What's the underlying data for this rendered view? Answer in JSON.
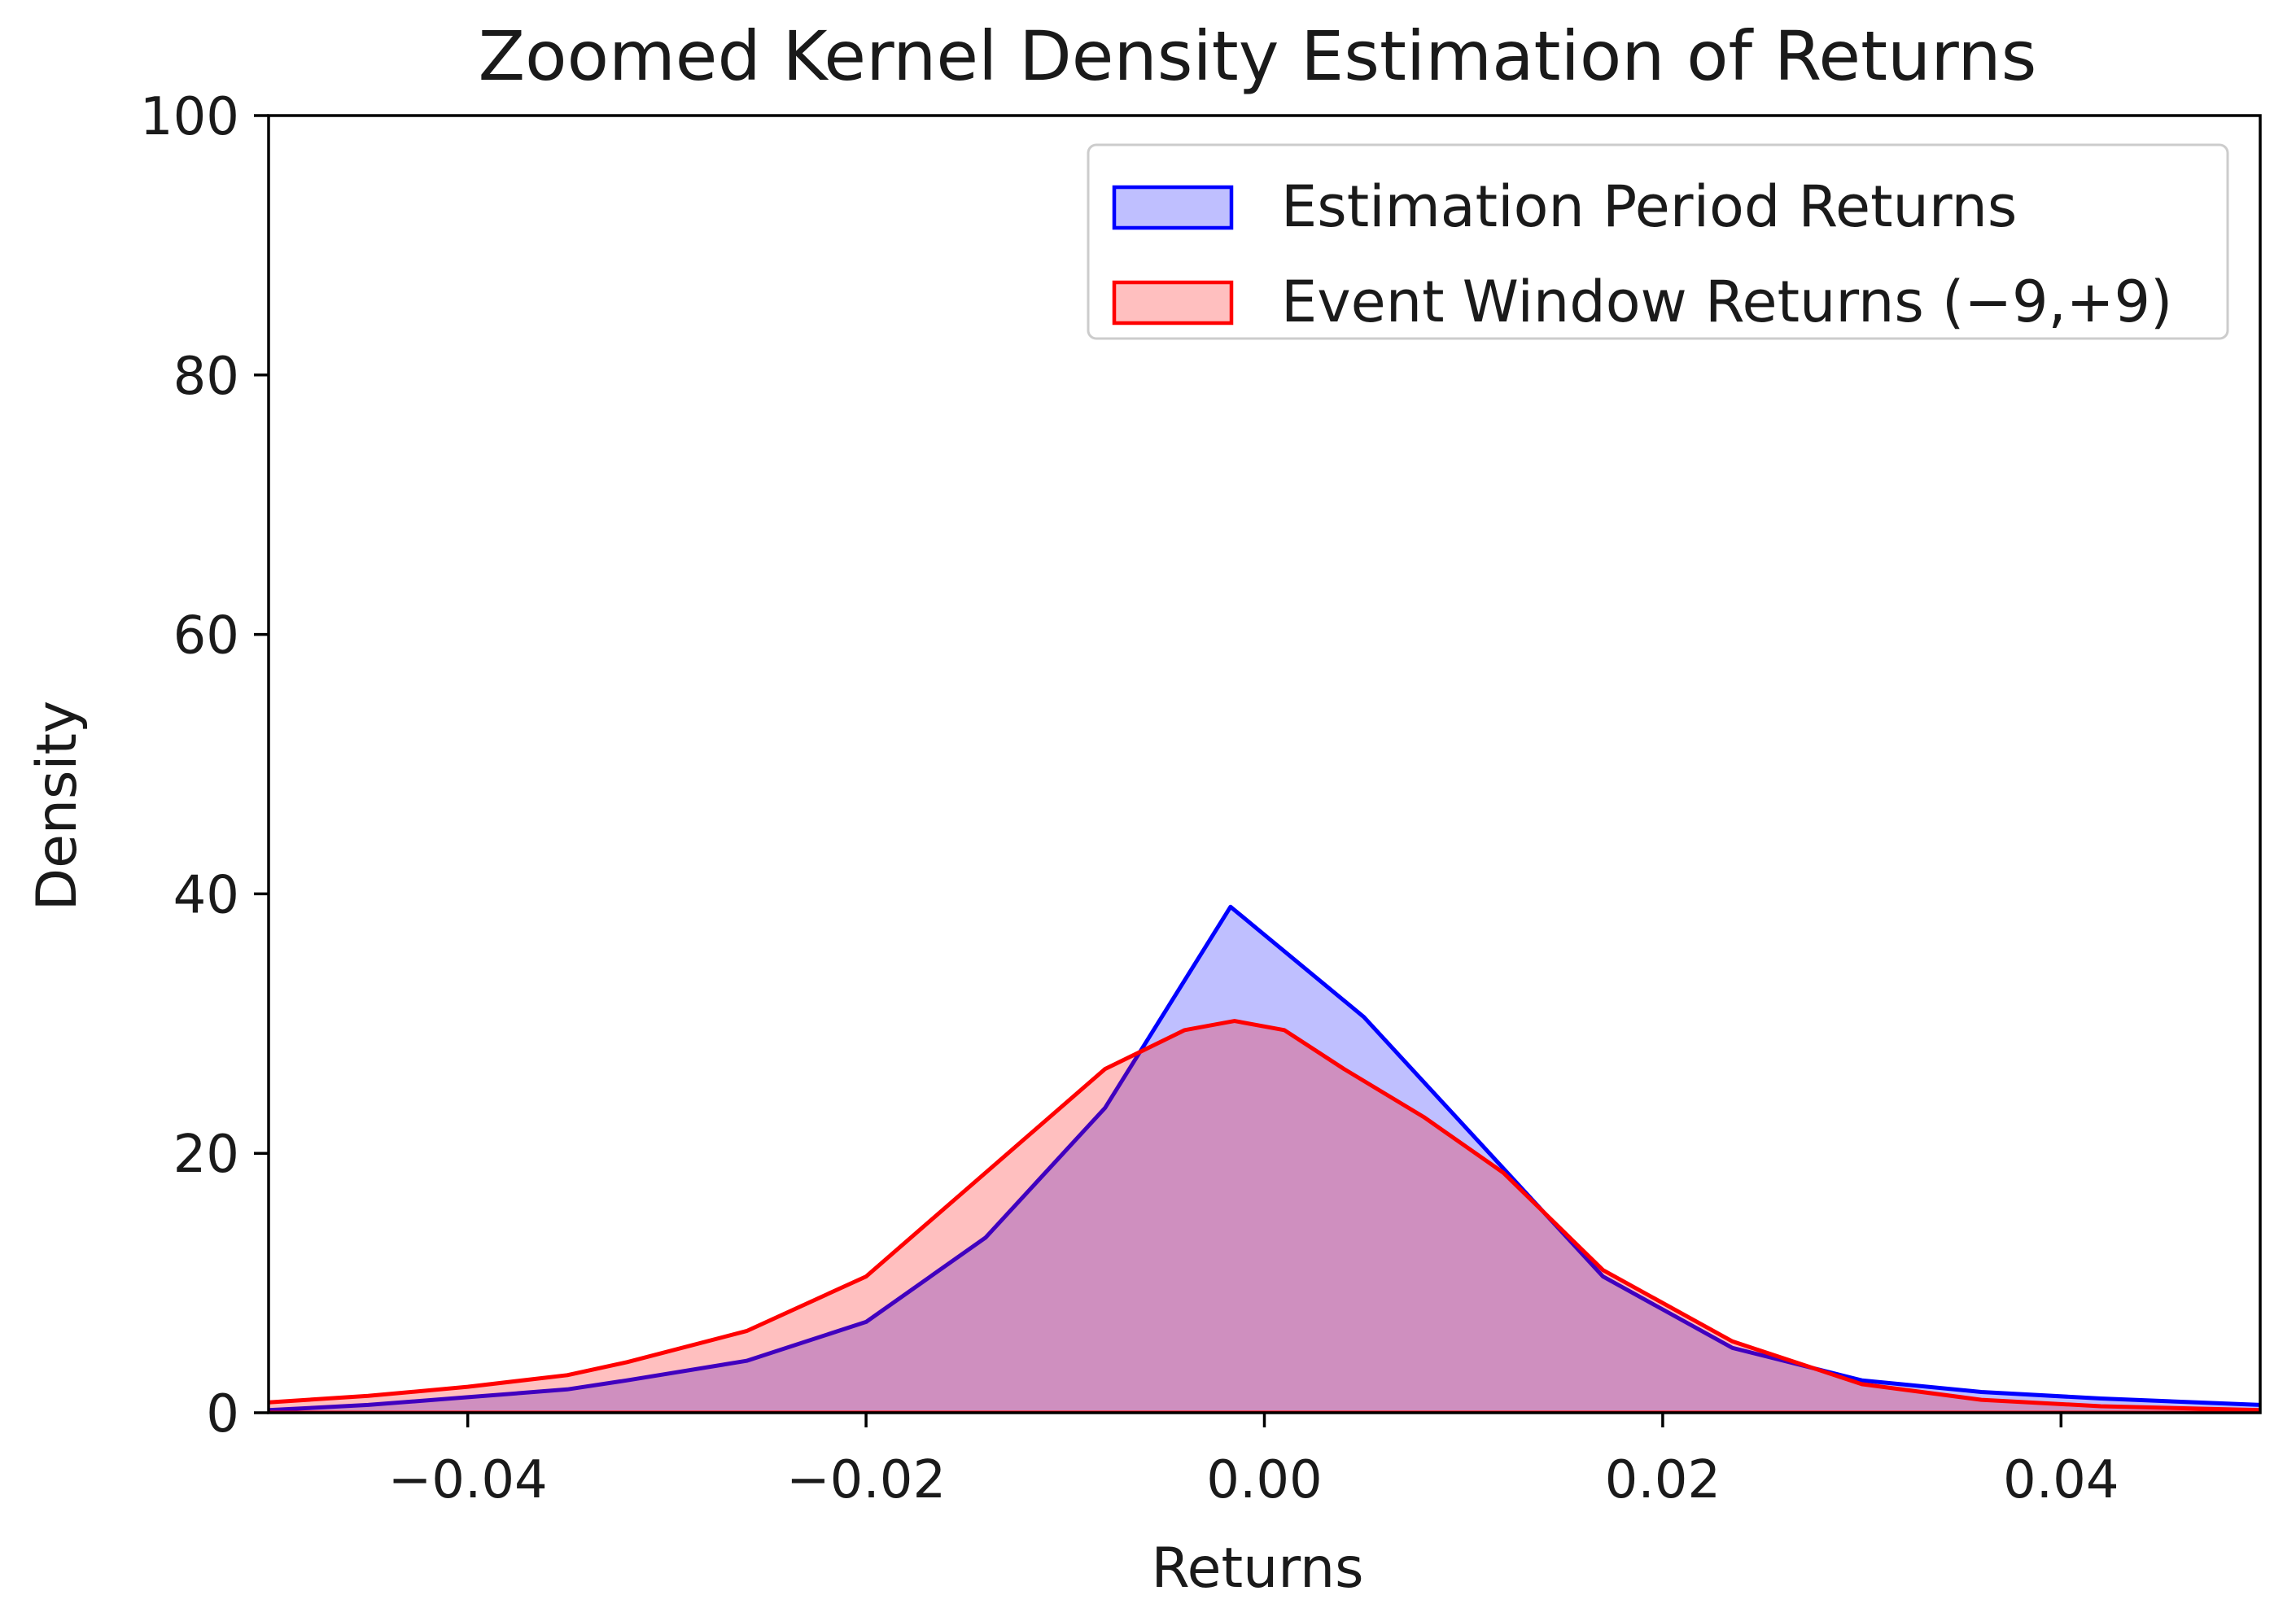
{
  "chart_data": {
    "type": "area",
    "title": "Zoomed Kernel Density Estimation of Returns",
    "xlabel": "Returns",
    "ylabel": "Density",
    "xlim": [
      -0.05,
      0.05
    ],
    "ylim": [
      0,
      100
    ],
    "x_ticks": [
      -0.04,
      -0.02,
      0.0,
      0.02,
      0.04
    ],
    "x_tick_labels": [
      "−0.04",
      "−0.02",
      "0.00",
      "0.02",
      "0.04"
    ],
    "y_ticks": [
      0,
      20,
      40,
      60,
      80,
      100
    ],
    "y_tick_labels": [
      "0",
      "20",
      "40",
      "60",
      "80",
      "100"
    ],
    "grid": false,
    "legend_position": "upper right",
    "series": [
      {
        "name": "Estimation Period Returns",
        "color": "#0000ff",
        "fill": "#0000ff",
        "fill_opacity": 0.25,
        "x": [
          -0.05,
          -0.045,
          -0.04,
          -0.035,
          -0.032,
          -0.026,
          -0.02,
          -0.014,
          -0.008,
          -0.0017,
          0.005,
          0.011,
          0.017,
          0.0235,
          0.03,
          0.036,
          0.042,
          0.05
        ],
        "y": [
          0.2,
          0.6,
          1.2,
          1.8,
          2.5,
          4.0,
          7.0,
          13.5,
          23.5,
          39.0,
          30.5,
          20.5,
          10.5,
          5.0,
          2.5,
          1.6,
          1.1,
          0.6
        ]
      },
      {
        "name": "Event Window Returns (−9,+9)",
        "color": "#ff0000",
        "fill": "#ff0000",
        "fill_opacity": 0.25,
        "x": [
          -0.05,
          -0.045,
          -0.04,
          -0.035,
          -0.032,
          -0.026,
          -0.02,
          -0.014,
          -0.008,
          -0.004,
          -0.0015,
          0.001,
          0.004,
          0.008,
          0.012,
          0.017,
          0.0235,
          0.03,
          0.036,
          0.042,
          0.05
        ],
        "y": [
          0.8,
          1.3,
          2.0,
          2.9,
          3.9,
          6.3,
          10.5,
          18.5,
          26.5,
          29.5,
          30.2,
          29.5,
          26.5,
          22.8,
          18.5,
          11.0,
          5.5,
          2.2,
          1.0,
          0.5,
          0.2
        ]
      }
    ]
  }
}
